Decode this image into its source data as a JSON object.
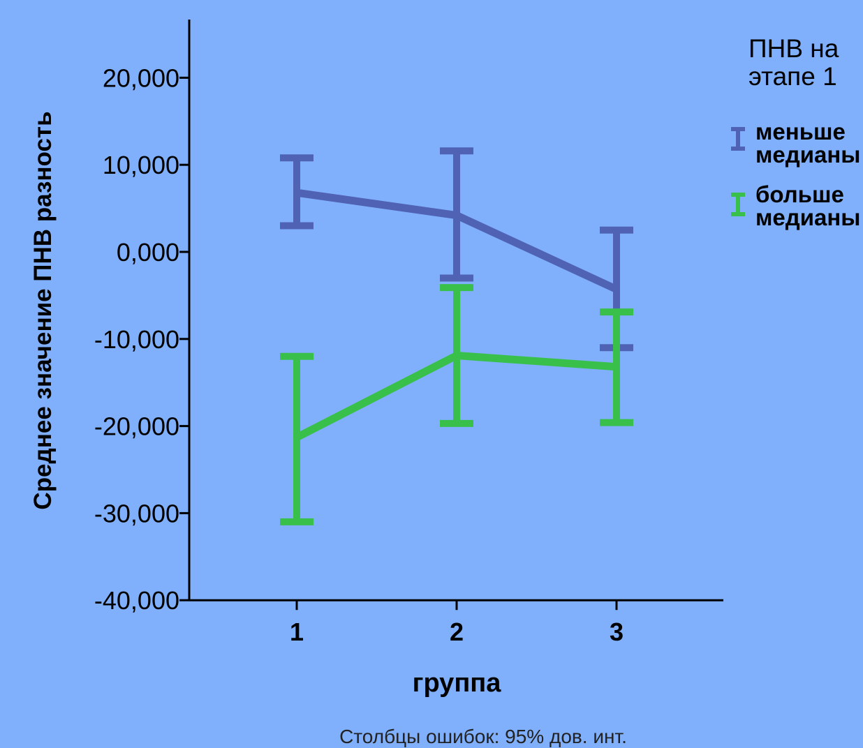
{
  "chart_data": {
    "type": "line",
    "categories": [
      "1",
      "2",
      "3"
    ],
    "ylim": [
      -40,
      25
    ],
    "y_ticks": [
      20,
      10,
      0,
      -10,
      -20,
      -30,
      -40
    ],
    "y_tick_labels": [
      "20,000",
      "10,000",
      "0,000",
      "-10,000",
      "-20,000",
      "-30,000",
      "-40,000"
    ],
    "xlabel": "группа",
    "ylabel": "Среднее значение ПНВ разность",
    "footnote": "Столбцы ошибок: 95% дов. инт.",
    "legend": {
      "title_line1": "ПНВ на",
      "title_line2": "этапе 1",
      "position": "right"
    },
    "series": [
      {
        "name_line1": "меньше",
        "name_line2": "медианы",
        "color": "#4f62b3",
        "means": [
          6.8,
          4.2,
          -4.3
        ],
        "ci_upper": [
          10.8,
          11.6,
          2.5
        ],
        "ci_lower": [
          3.0,
          -3.0,
          -11.0
        ]
      },
      {
        "name_line1": "больше",
        "name_line2": "медианы",
        "color": "#39c04a",
        "means": [
          -21.3,
          -11.9,
          -13.2
        ],
        "ci_upper": [
          -12.0,
          -4.1,
          -6.9
        ],
        "ci_lower": [
          -31.0,
          -19.7,
          -19.6
        ]
      }
    ]
  }
}
